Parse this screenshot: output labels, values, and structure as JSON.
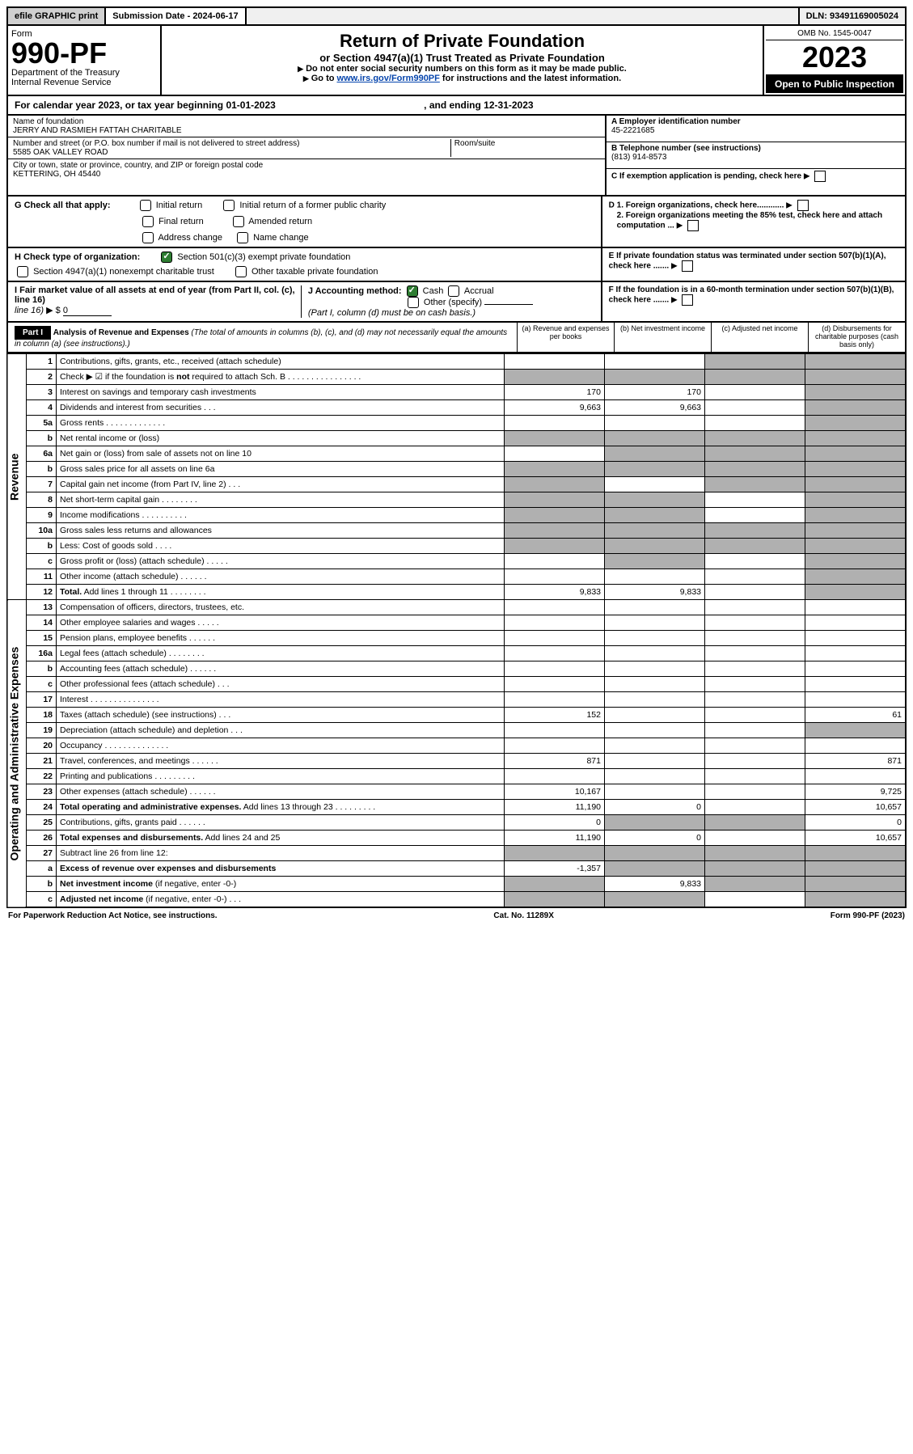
{
  "top": {
    "efile": "efile GRAPHIC print",
    "submission_label": "Submission Date - 2024-06-17",
    "dln": "DLN: 93491169005024"
  },
  "header": {
    "form_label": "Form",
    "form_number": "990-PF",
    "dept": "Department of the Treasury",
    "irs": "Internal Revenue Service",
    "title": "Return of Private Foundation",
    "subtitle": "or Section 4947(a)(1) Trust Treated as Private Foundation",
    "note1": "Do not enter social security numbers on this form as it may be made public.",
    "note2_pre": "Go to ",
    "note2_link": "www.irs.gov/Form990PF",
    "note2_post": " for instructions and the latest information.",
    "omb": "OMB No. 1545-0047",
    "year": "2023",
    "open": "Open to Public Inspection"
  },
  "calendar": {
    "prefix": "For calendar year 2023, or tax year beginning 01-01-2023",
    "ending": ", and ending 12-31-2023"
  },
  "filer": {
    "name_label": "Name of foundation",
    "name": "JERRY AND RASMIEH FATTAH CHARITABLE",
    "addr_label": "Number and street (or P.O. box number if mail is not delivered to street address)",
    "addr": "5585 OAK VALLEY ROAD",
    "room_label": "Room/suite",
    "city_label": "City or town, state or province, country, and ZIP or foreign postal code",
    "city": "KETTERING, OH  45440",
    "ein_label": "A Employer identification number",
    "ein": "45-2221685",
    "phone_label": "B Telephone number (see instructions)",
    "phone": "(813) 914-8573",
    "c_label": "C If exemption application is pending, check here"
  },
  "checks": {
    "g_label": "G Check all that apply:",
    "g_opts": [
      "Initial return",
      "Initial return of a former public charity",
      "Final return",
      "Amended return",
      "Address change",
      "Name change"
    ],
    "h_label": "H Check type of organization:",
    "h_opt1": "Section 501(c)(3) exempt private foundation",
    "h_opt2": "Section 4947(a)(1) nonexempt charitable trust",
    "h_opt3": "Other taxable private foundation",
    "i_label": "I Fair market value of all assets at end of year (from Part II, col. (c), line 16)",
    "i_prefix": "▶ $",
    "i_value": "0",
    "j_label": "J Accounting method:",
    "j_cash": "Cash",
    "j_accrual": "Accrual",
    "j_other": "Other (specify)",
    "j_note": "(Part I, column (d) must be on cash basis.)",
    "d1": "D 1. Foreign organizations, check here............",
    "d2": "2. Foreign organizations meeting the 85% test, check here and attach computation ...",
    "e": "E If private foundation status was terminated under section 507(b)(1)(A), check here .......",
    "f": "F If the foundation is in a 60-month termination under section 507(b)(1)(B), check here .......",
    "arrow": "▶"
  },
  "part1": {
    "label": "Part I",
    "title": "Analysis of Revenue and Expenses",
    "note": "(The total of amounts in columns (b), (c), and (d) may not necessarily equal the amounts in column (a) (see instructions).)",
    "col_a": "(a) Revenue and expenses per books",
    "col_b": "(b) Net investment income",
    "col_c": "(c) Adjusted net income",
    "col_d": "(d) Disbursements for charitable purposes (cash basis only)"
  },
  "sections": {
    "revenue": "Revenue",
    "opex": "Operating and Administrative Expenses"
  },
  "rows": [
    {
      "n": "1",
      "t": "Contributions, gifts, grants, etc., received (attach schedule)",
      "a": "",
      "b": "",
      "c": "s",
      "d": "s"
    },
    {
      "n": "2",
      "t": "Check ▶ ☑ if the foundation is <b>not</b> required to attach Sch. B   .  .  .  .  .  .  .  .  .  .  .  .  .  .  .  .",
      "a": "s",
      "b": "s",
      "c": "s",
      "d": "s"
    },
    {
      "n": "3",
      "t": "Interest on savings and temporary cash investments",
      "a": "170",
      "b": "170",
      "c": "",
      "d": "s"
    },
    {
      "n": "4",
      "t": "Dividends and interest from securities   .  .  .",
      "a": "9,663",
      "b": "9,663",
      "c": "",
      "d": "s"
    },
    {
      "n": "5a",
      "t": "Gross rents   .  .  .  .  .  .  .  .  .  .  .  .  .",
      "a": "",
      "b": "",
      "c": "",
      "d": "s"
    },
    {
      "n": "b",
      "t": "Net rental income or (loss)",
      "a": "s",
      "b": "s",
      "c": "s",
      "d": "s"
    },
    {
      "n": "6a",
      "t": "Net gain or (loss) from sale of assets not on line 10",
      "a": "",
      "b": "s",
      "c": "s",
      "d": "s"
    },
    {
      "n": "b",
      "t": "Gross sales price for all assets on line 6a",
      "a": "s",
      "b": "s",
      "c": "s",
      "d": "s"
    },
    {
      "n": "7",
      "t": "Capital gain net income (from Part IV, line 2)  .  .  .",
      "a": "s",
      "b": "",
      "c": "s",
      "d": "s"
    },
    {
      "n": "8",
      "t": "Net short-term capital gain  .  .  .  .  .  .  .  .",
      "a": "s",
      "b": "s",
      "c": "",
      "d": "s"
    },
    {
      "n": "9",
      "t": "Income modifications  .  .  .  .  .  .  .  .  .  .",
      "a": "s",
      "b": "s",
      "c": "",
      "d": "s"
    },
    {
      "n": "10a",
      "t": "Gross sales less returns and allowances",
      "a": "s",
      "b": "s",
      "c": "s",
      "d": "s"
    },
    {
      "n": "b",
      "t": "Less: Cost of goods sold   .  .  .  .",
      "a": "s",
      "b": "s",
      "c": "s",
      "d": "s"
    },
    {
      "n": "c",
      "t": "Gross profit or (loss) (attach schedule)   .  .  .  .  .",
      "a": "",
      "b": "s",
      "c": "",
      "d": "s"
    },
    {
      "n": "11",
      "t": "Other income (attach schedule)   .  .  .  .  .  .",
      "a": "",
      "b": "",
      "c": "",
      "d": "s"
    },
    {
      "n": "12",
      "t": "<b>Total.</b> Add lines 1 through 11  .  .  .  .  .  .  .  .",
      "a": "9,833",
      "b": "9,833",
      "c": "",
      "d": "s"
    },
    {
      "n": "13",
      "t": "Compensation of officers, directors, trustees, etc.",
      "a": "",
      "b": "",
      "c": "",
      "d": ""
    },
    {
      "n": "14",
      "t": "Other employee salaries and wages   .  .  .  .  .",
      "a": "",
      "b": "",
      "c": "",
      "d": ""
    },
    {
      "n": "15",
      "t": "Pension plans, employee benefits  .  .  .  .  .  .",
      "a": "",
      "b": "",
      "c": "",
      "d": ""
    },
    {
      "n": "16a",
      "t": "Legal fees (attach schedule)  .  .  .  .  .  .  .  .",
      "a": "",
      "b": "",
      "c": "",
      "d": ""
    },
    {
      "n": "b",
      "t": "Accounting fees (attach schedule)  .  .  .  .  .  .",
      "a": "",
      "b": "",
      "c": "",
      "d": ""
    },
    {
      "n": "c",
      "t": "Other professional fees (attach schedule)   .  .  .",
      "a": "",
      "b": "",
      "c": "",
      "d": ""
    },
    {
      "n": "17",
      "t": "Interest  .  .  .  .  .  .  .  .  .  .  .  .  .  .  .",
      "a": "",
      "b": "",
      "c": "",
      "d": ""
    },
    {
      "n": "18",
      "t": "Taxes (attach schedule) (see instructions)   .  .  .",
      "a": "152",
      "b": "",
      "c": "",
      "d": "61"
    },
    {
      "n": "19",
      "t": "Depreciation (attach schedule) and depletion   .  .  .",
      "a": "",
      "b": "",
      "c": "",
      "d": "s"
    },
    {
      "n": "20",
      "t": "Occupancy  .  .  .  .  .  .  .  .  .  .  .  .  .  .",
      "a": "",
      "b": "",
      "c": "",
      "d": ""
    },
    {
      "n": "21",
      "t": "Travel, conferences, and meetings  .  .  .  .  .  .",
      "a": "871",
      "b": "",
      "c": "",
      "d": "871"
    },
    {
      "n": "22",
      "t": "Printing and publications  .  .  .  .  .  .  .  .  .",
      "a": "",
      "b": "",
      "c": "",
      "d": ""
    },
    {
      "n": "23",
      "t": "Other expenses (attach schedule)  .  .  .  .  .  .",
      "a": "10,167",
      "b": "",
      "c": "",
      "d": "9,725"
    },
    {
      "n": "24",
      "t": "<b>Total operating and administrative expenses.</b> Add lines 13 through 23  .  .  .  .  .  .  .  .  .",
      "a": "11,190",
      "b": "0",
      "c": "",
      "d": "10,657"
    },
    {
      "n": "25",
      "t": "Contributions, gifts, grants paid   .  .  .  .  .  .",
      "a": "0",
      "b": "s",
      "c": "s",
      "d": "0"
    },
    {
      "n": "26",
      "t": "<b>Total expenses and disbursements.</b> Add lines 24 and 25",
      "a": "11,190",
      "b": "0",
      "c": "",
      "d": "10,657"
    },
    {
      "n": "27",
      "t": "Subtract line 26 from line 12:",
      "a": "s",
      "b": "s",
      "c": "s",
      "d": "s"
    },
    {
      "n": "a",
      "t": "<b>Excess of revenue over expenses and disbursements</b>",
      "a": "-1,357",
      "b": "s",
      "c": "s",
      "d": "s"
    },
    {
      "n": "b",
      "t": "<b>Net investment income</b> (if negative, enter -0-)",
      "a": "s",
      "b": "9,833",
      "c": "s",
      "d": "s"
    },
    {
      "n": "c",
      "t": "<b>Adjusted net income</b> (if negative, enter -0-)  .  .  .",
      "a": "s",
      "b": "s",
      "c": "",
      "d": "s"
    }
  ],
  "footer": {
    "left": "For Paperwork Reduction Act Notice, see instructions.",
    "mid": "Cat. No. 11289X",
    "right": "Form 990-PF (2023)"
  }
}
